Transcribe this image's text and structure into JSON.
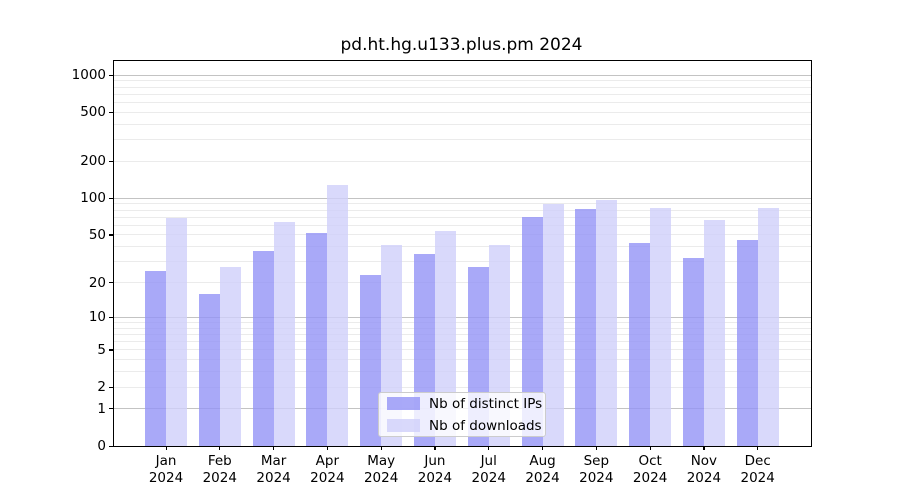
{
  "chart_data": {
    "type": "bar",
    "title": "pd.ht.hg.u133.plus.pm 2024",
    "categories": [
      "Jan",
      "Feb",
      "Mar",
      "Apr",
      "May",
      "Jun",
      "Jul",
      "Aug",
      "Sep",
      "Oct",
      "Nov",
      "Dec"
    ],
    "x_tick_year": "2024",
    "series": [
      {
        "name": "Nb of distinct IPs",
        "color": "#9494f6",
        "values": [
          25,
          16,
          37,
          52,
          23,
          35,
          27,
          70,
          81,
          43,
          32,
          45
        ]
      },
      {
        "name": "Nb of downloads",
        "color": "#d0d0fa",
        "values": [
          69,
          27,
          64,
          128,
          41,
          54,
          41,
          90,
          96,
          83,
          67,
          84
        ]
      }
    ],
    "yscale": "log1p",
    "ylim": [
      0,
      1300
    ],
    "y_ticks": [
      0,
      1,
      2,
      5,
      10,
      20,
      50,
      100,
      200,
      500,
      1000
    ],
    "major_gridlines": [
      1,
      10,
      100,
      1000
    ],
    "minor_gridlines": [
      2,
      3,
      4,
      5,
      6,
      7,
      8,
      9,
      20,
      30,
      40,
      50,
      60,
      70,
      80,
      90,
      200,
      300,
      400,
      500,
      600,
      700,
      800,
      900
    ],
    "grid": true,
    "legend_position": "lower center",
    "colors": {
      "grid_major": "#c3c3c3",
      "grid_minor": "#ebebeb",
      "axis": "#000000",
      "background": "#ffffff"
    }
  }
}
